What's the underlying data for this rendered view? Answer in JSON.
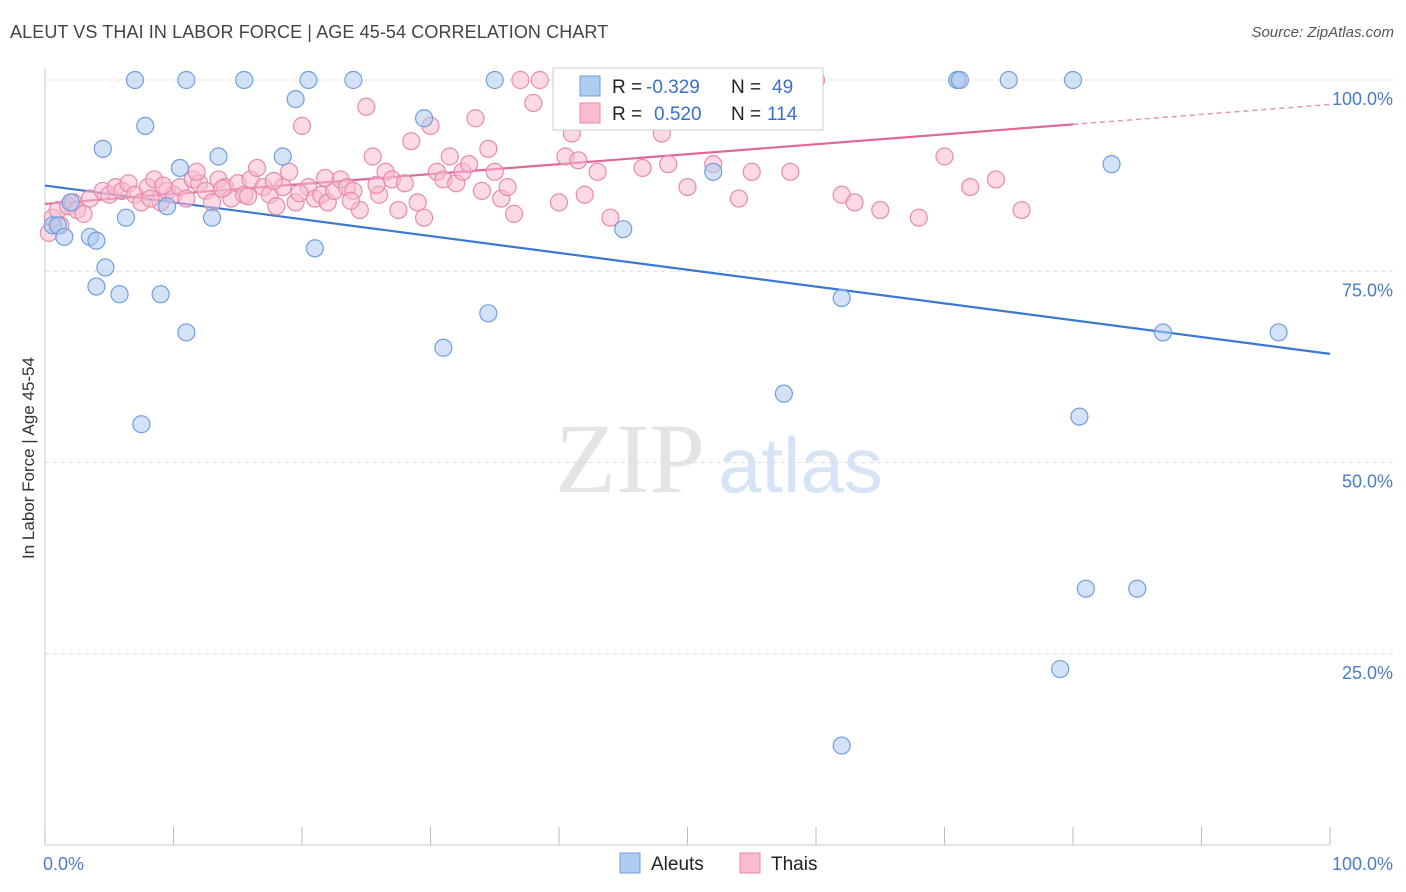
{
  "header": {
    "title": "ALEUT VS THAI IN LABOR FORCE | AGE 45-54 CORRELATION CHART",
    "source": "Source: ZipAtlas.com"
  },
  "watermark": {
    "zip": "ZIP",
    "atlas": "atlas"
  },
  "legend": {
    "aleut": {
      "r_label": "R =",
      "r_value": "-0.329",
      "n_label": "N =",
      "n_value": "49"
    },
    "thai": {
      "r_label": "R =",
      "r_value": "0.520",
      "n_label": "N =",
      "n_value": "114"
    }
  },
  "bottom_legend": {
    "aleut": "Aleuts",
    "thai": "Thais"
  },
  "colors": {
    "aleut_fill": "#aecbf0",
    "aleut_stroke": "#6f9fdd",
    "aleut_line": "#3a78d4",
    "thai_fill": "#f7bcd0",
    "thai_stroke": "#e88aab",
    "thai_line": "#e0679a",
    "tick_text": "#4a7cc9",
    "grid": "#dddddd"
  },
  "chart_data": {
    "type": "scatter",
    "title": "ALEUT VS THAI IN LABOR FORCE | AGE 45-54 CORRELATION CHART",
    "xlabel": "",
    "ylabel": "In Labor Force | Age 45-54",
    "xlim": [
      0,
      100
    ],
    "ylim": [
      0,
      100
    ],
    "x_tick_labels": [
      "0.0%",
      "100.0%"
    ],
    "y_ticks": [
      25,
      50,
      75,
      100
    ],
    "y_tick_labels": [
      "25.0%",
      "50.0%",
      "75.0%",
      "100.0%"
    ],
    "grid": true,
    "legend_position": "top-center",
    "series": [
      {
        "name": "Aleuts",
        "R": -0.329,
        "N": 49,
        "trend": {
          "x": [
            0,
            100
          ],
          "y": [
            86.2,
            64.2
          ]
        },
        "points": [
          [
            0.6,
            81
          ],
          [
            1,
            81
          ],
          [
            1.5,
            79.5
          ],
          [
            2,
            84
          ],
          [
            3.5,
            79.5
          ],
          [
            4,
            73
          ],
          [
            4,
            79
          ],
          [
            4.5,
            91
          ],
          [
            4.7,
            75.5
          ],
          [
            5.8,
            72
          ],
          [
            6.3,
            82
          ],
          [
            7,
            100
          ],
          [
            7.5,
            55
          ],
          [
            7.8,
            94
          ],
          [
            9,
            72
          ],
          [
            9.5,
            83.5
          ],
          [
            10.5,
            88.5
          ],
          [
            11,
            100
          ],
          [
            11,
            67
          ],
          [
            13,
            82
          ],
          [
            13.5,
            90
          ],
          [
            15.5,
            100
          ],
          [
            18.5,
            90
          ],
          [
            19.5,
            97.5
          ],
          [
            20.5,
            100
          ],
          [
            21,
            78
          ],
          [
            24,
            100
          ],
          [
            29.5,
            95
          ],
          [
            31,
            65
          ],
          [
            34.5,
            69.5
          ],
          [
            35,
            100
          ],
          [
            45,
            80.5
          ],
          [
            52,
            88
          ],
          [
            58,
            100
          ],
          [
            57.5,
            59
          ],
          [
            62,
            71.5
          ],
          [
            62,
            13
          ],
          [
            71,
            100
          ],
          [
            71,
            100
          ],
          [
            71.2,
            100
          ],
          [
            75,
            100
          ],
          [
            79,
            23
          ],
          [
            80,
            100
          ],
          [
            80.5,
            56
          ],
          [
            81,
            33.5
          ],
          [
            83,
            89
          ],
          [
            85,
            33.5
          ],
          [
            87,
            67
          ],
          [
            96,
            67
          ]
        ]
      },
      {
        "name": "Thais",
        "R": 0.52,
        "N": 114,
        "trend": {
          "x": [
            0,
            80
          ],
          "y": [
            83.8,
            94.2
          ]
        },
        "trend_dashed": {
          "x": [
            80,
            100
          ],
          "y": [
            94.2,
            96.8
          ]
        },
        "points": [
          [
            0.3,
            80
          ],
          [
            0.6,
            82
          ],
          [
            1,
            83
          ],
          [
            1.2,
            81
          ],
          [
            1.8,
            83.5
          ],
          [
            2.2,
            84
          ],
          [
            2.5,
            83
          ],
          [
            3,
            82.5
          ],
          [
            3.5,
            84.5
          ],
          [
            4.5,
            85.5
          ],
          [
            5,
            85
          ],
          [
            5.5,
            86
          ],
          [
            6,
            85.5
          ],
          [
            6.5,
            86.5
          ],
          [
            7,
            85
          ],
          [
            7.5,
            84
          ],
          [
            8,
            86
          ],
          [
            8.5,
            87
          ],
          [
            9,
            84
          ],
          [
            9.5,
            85.5
          ],
          [
            10,
            85
          ],
          [
            10.5,
            86
          ],
          [
            11,
            84.5
          ],
          [
            11.5,
            87
          ],
          [
            12,
            86.5
          ],
          [
            12.5,
            85.5
          ],
          [
            13,
            84
          ],
          [
            13.5,
            87
          ],
          [
            14,
            86
          ],
          [
            14.5,
            84.5
          ],
          [
            15,
            86.5
          ],
          [
            15.5,
            85
          ],
          [
            16,
            87
          ],
          [
            16.5,
            88.5
          ],
          [
            17,
            86
          ],
          [
            17.5,
            85
          ],
          [
            18,
            83.5
          ],
          [
            18.5,
            86
          ],
          [
            19,
            88
          ],
          [
            19.5,
            84
          ],
          [
            20,
            94
          ],
          [
            20.5,
            86
          ],
          [
            21,
            84.5
          ],
          [
            21.5,
            85
          ],
          [
            22,
            84
          ],
          [
            22.5,
            85.5
          ],
          [
            23,
            87
          ],
          [
            23.5,
            86
          ],
          [
            24,
            85.5
          ],
          [
            24.5,
            83
          ],
          [
            25,
            96.5
          ],
          [
            25.5,
            90
          ],
          [
            26,
            85
          ],
          [
            26.5,
            88
          ],
          [
            27,
            87
          ],
          [
            27.5,
            83
          ],
          [
            28,
            86.5
          ],
          [
            28.5,
            92
          ],
          [
            29,
            84
          ],
          [
            29.5,
            82
          ],
          [
            30,
            94
          ],
          [
            30.5,
            88
          ],
          [
            31,
            87
          ],
          [
            31.5,
            90
          ],
          [
            32,
            86.5
          ],
          [
            32.5,
            88
          ],
          [
            33,
            89
          ],
          [
            33.5,
            95
          ],
          [
            34,
            85.5
          ],
          [
            34.5,
            91
          ],
          [
            35,
            88
          ],
          [
            35.5,
            84.5
          ],
          [
            36,
            86
          ],
          [
            36.5,
            82.5
          ],
          [
            37,
            100
          ],
          [
            38,
            97
          ],
          [
            38.5,
            100
          ],
          [
            40,
            84
          ],
          [
            40.5,
            90
          ],
          [
            41,
            93
          ],
          [
            41.5,
            89.5
          ],
          [
            42,
            85
          ],
          [
            43,
            88
          ],
          [
            44,
            82
          ],
          [
            45,
            96
          ],
          [
            46.5,
            88.5
          ],
          [
            47.5,
            95.5
          ],
          [
            48,
            93
          ],
          [
            48.5,
            89
          ],
          [
            50,
            86
          ],
          [
            52,
            89
          ],
          [
            54,
            84.5
          ],
          [
            55,
            88
          ],
          [
            56,
            100
          ],
          [
            58,
            88
          ],
          [
            60,
            100
          ],
          [
            62,
            85
          ],
          [
            63,
            84
          ],
          [
            65,
            83
          ],
          [
            68,
            82
          ],
          [
            70,
            90
          ],
          [
            72,
            86
          ],
          [
            74,
            87
          ],
          [
            76,
            83
          ],
          [
            8.2,
            84.5
          ],
          [
            9.2,
            86.2
          ],
          [
            11.8,
            88
          ],
          [
            13.8,
            85.8
          ],
          [
            15.8,
            84.8
          ],
          [
            17.8,
            86.8
          ],
          [
            19.8,
            85.2
          ],
          [
            21.8,
            87.2
          ],
          [
            23.8,
            84.2
          ],
          [
            25.8,
            86.3
          ]
        ]
      }
    ]
  }
}
